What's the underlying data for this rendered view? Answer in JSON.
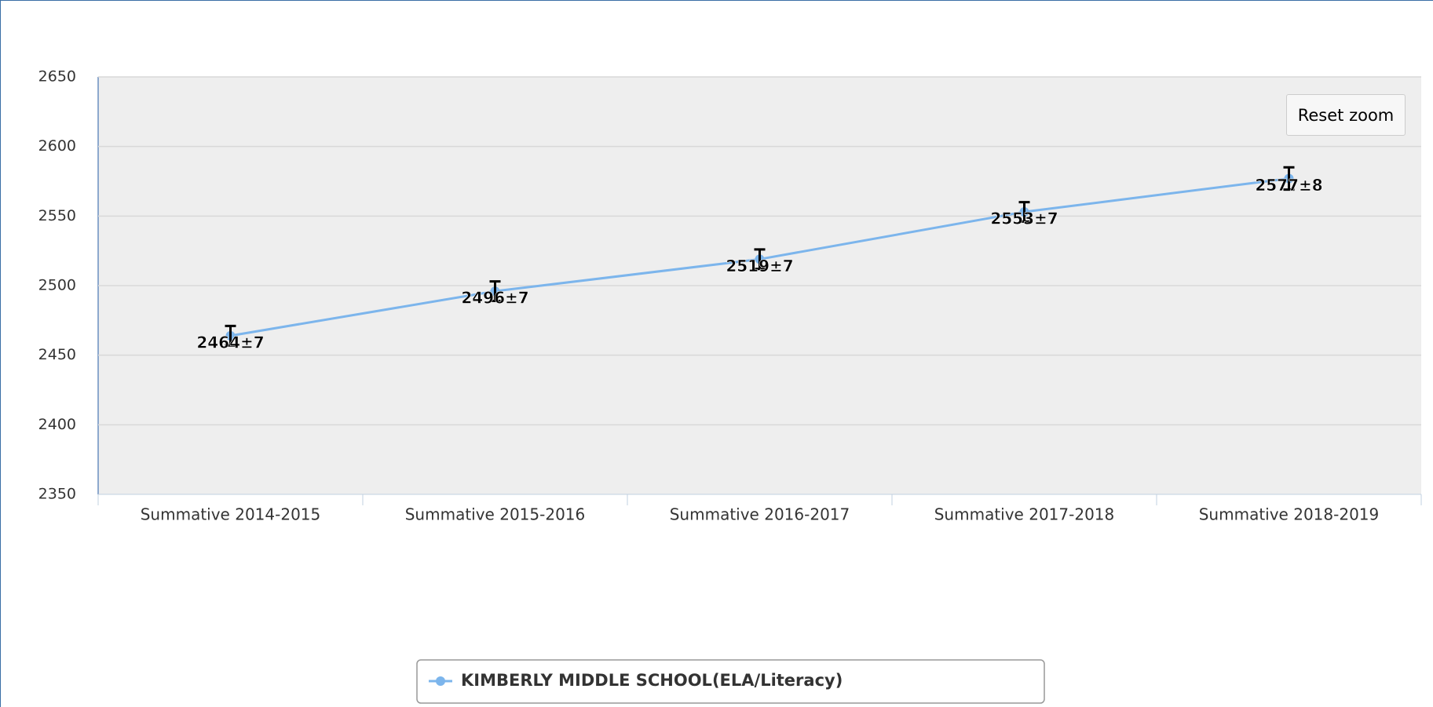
{
  "chart_data": {
    "type": "line",
    "categories": [
      "Summative 2014-2015",
      "Summative 2015-2016",
      "Summative 2016-2017",
      "Summative 2017-2018",
      "Summative 2018-2019"
    ],
    "series": [
      {
        "name": "KIMBERLY MIDDLE SCHOOL(ELA/Literacy)",
        "color": "#7cb5ec",
        "values": [
          2464,
          2496,
          2519,
          2553,
          2577
        ],
        "errors": [
          7,
          7,
          7,
          7,
          8
        ],
        "value_labels": [
          "2464±7",
          "2496±7",
          "2519±7",
          "2553±7",
          "2577±8"
        ]
      }
    ],
    "ylim": [
      2350,
      2650
    ],
    "yticks": [
      2350,
      2400,
      2450,
      2500,
      2550,
      2600,
      2650
    ],
    "grid": true,
    "legend": "bottom"
  },
  "reset_button": "Reset zoom"
}
